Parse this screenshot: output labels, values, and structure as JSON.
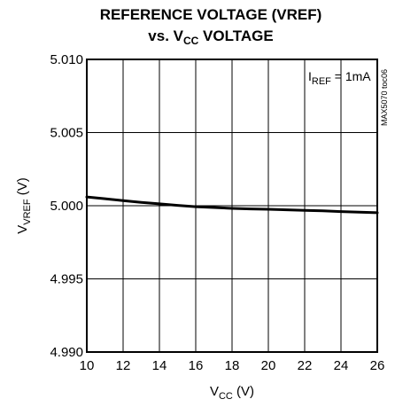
{
  "chart_data": {
    "type": "line",
    "title_line1": "REFERENCE VOLTAGE (VREF)",
    "title_line2_prefix": "vs. V",
    "title_line2_sub": "CC",
    "title_line2_suffix": " VOLTAGE",
    "xlabel_main": "V",
    "xlabel_sub": "CC",
    "xlabel_unit": " (V)",
    "ylabel_main": "V",
    "ylabel_sub": "VREF",
    "ylabel_unit": " (V)",
    "annotation_main": "I",
    "annotation_sub": "REF",
    "annotation_rest": " = 1mA",
    "side_label": "MAX5070 toc06",
    "xlim": [
      10,
      26
    ],
    "ylim": [
      4.99,
      5.01
    ],
    "x_ticks": [
      10,
      12,
      14,
      16,
      18,
      20,
      22,
      24,
      26
    ],
    "y_ticks": [
      5.01,
      5.005,
      5.0,
      4.995,
      4.99
    ],
    "y_tick_labels": [
      "5.010",
      "5.005",
      "5.000",
      "4.995",
      "4.990"
    ],
    "grid": true,
    "series": [
      {
        "x": [
          10,
          11,
          12,
          13,
          14,
          15,
          16,
          17,
          18,
          19,
          20,
          21,
          22,
          23,
          24,
          25,
          26
        ],
        "y": [
          5.0006,
          5.00048,
          5.00035,
          5.00023,
          5.00013,
          5.00002,
          4.99993,
          4.99988,
          4.99982,
          4.99978,
          4.99976,
          4.99972,
          4.99968,
          4.99965,
          4.9996,
          4.99956,
          4.99952
        ]
      }
    ]
  }
}
